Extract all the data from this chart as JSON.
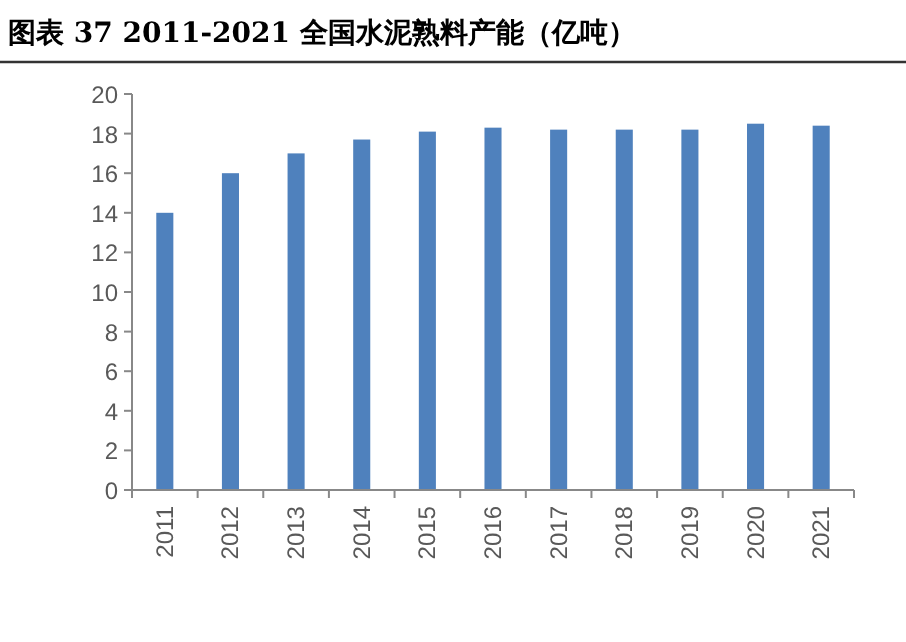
{
  "chart_data": {
    "type": "bar",
    "title": "图表 37 2011-2021 全国水泥熟料产能（亿吨）",
    "categories": [
      "2011",
      "2012",
      "2013",
      "2014",
      "2015",
      "2016",
      "2017",
      "2018",
      "2019",
      "2020",
      "2021"
    ],
    "values": [
      14,
      16,
      17,
      17.7,
      18.1,
      18.3,
      18.2,
      18.2,
      18.2,
      18.5,
      18.4
    ],
    "color": "#4f81bd",
    "ylim": [
      0,
      20
    ],
    "yticks": [
      0,
      2,
      4,
      6,
      8,
      10,
      12,
      14,
      16,
      18,
      20
    ]
  }
}
